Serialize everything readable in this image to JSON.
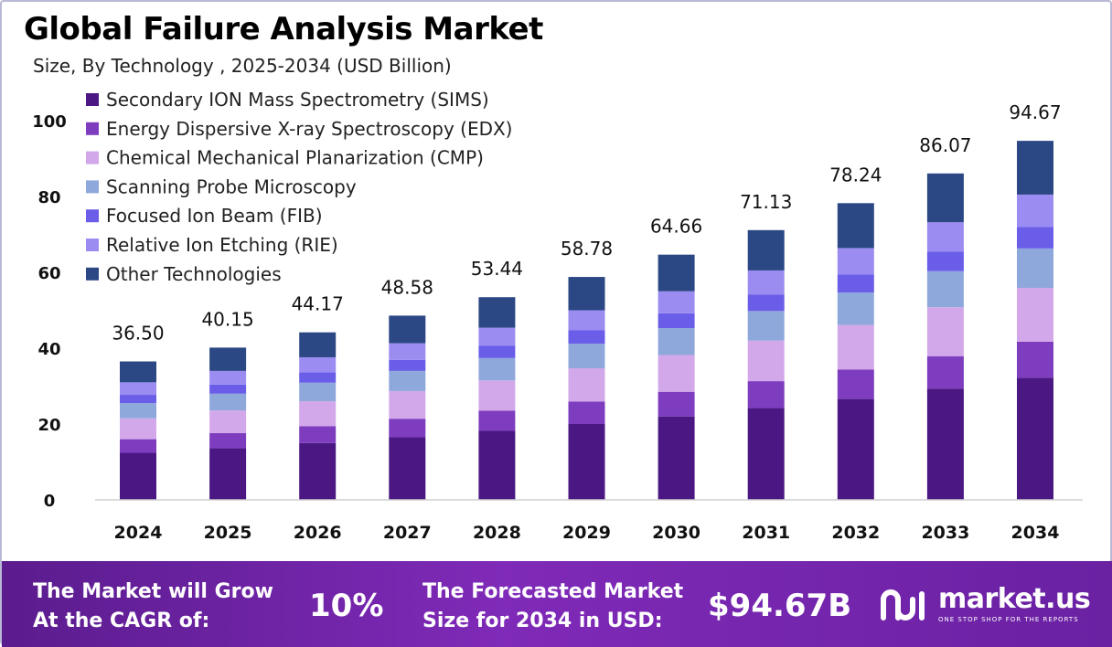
{
  "chart_data": {
    "type": "bar",
    "stacked": true,
    "title": "Global Failure Analysis Market",
    "subtitle": "Size, By Technology , 2025-2034 (USD Billion)",
    "xlabel": "",
    "ylabel": "",
    "ylim": [
      0,
      100
    ],
    "yticks": [
      0,
      20,
      40,
      60,
      80,
      100
    ],
    "grid": false,
    "legend_position": "top-left",
    "categories": [
      "2024",
      "2025",
      "2026",
      "2027",
      "2028",
      "2029",
      "2030",
      "2031",
      "2032",
      "2033",
      "2034"
    ],
    "totals": [
      36.5,
      40.15,
      44.17,
      48.58,
      53.44,
      58.78,
      64.66,
      71.13,
      78.24,
      86.07,
      94.67
    ],
    "total_labels": [
      "36.50",
      "40.15",
      "44.17",
      "48.58",
      "53.44",
      "58.78",
      "64.66",
      "71.13",
      "78.24",
      "86.07",
      "94.67"
    ],
    "series": [
      {
        "name": "Secondary ION Mass Spectrometry (SIMS)",
        "color": "#4b1783",
        "values": [
          12.4,
          13.6,
          15.0,
          16.5,
          18.2,
          20.0,
          22.0,
          24.2,
          26.6,
          29.3,
          32.2
        ]
      },
      {
        "name": "Energy Dispersive X-ray Spectroscopy (EDX)",
        "color": "#7e3dbf",
        "values": [
          3.6,
          4.0,
          4.4,
          4.9,
          5.3,
          5.9,
          6.5,
          7.1,
          7.8,
          8.6,
          9.5
        ]
      },
      {
        "name": "Chemical Mechanical Planarization (CMP)",
        "color": "#d2a8ea",
        "values": [
          5.5,
          6.0,
          6.6,
          7.3,
          8.0,
          8.8,
          9.7,
          10.7,
          11.7,
          12.9,
          14.2
        ]
      },
      {
        "name": " Scanning Probe Microscopy",
        "color": "#8fa8dc",
        "values": [
          4.0,
          4.4,
          4.9,
          5.3,
          5.9,
          6.5,
          7.1,
          7.8,
          8.6,
          9.5,
          10.4
        ]
      },
      {
        "name": "Focused Ion Beam (FIB)",
        "color": "#6a5de8",
        "values": [
          2.2,
          2.4,
          2.7,
          2.9,
          3.2,
          3.5,
          3.9,
          4.3,
          4.7,
          5.2,
          5.7
        ]
      },
      {
        "name": " Relative Ion Etching (RIE)",
        "color": "#9b8cf2",
        "values": [
          3.3,
          3.6,
          4.0,
          4.4,
          4.8,
          5.3,
          5.8,
          6.4,
          7.0,
          7.7,
          8.5
        ]
      },
      {
        "name": "Other Technologies",
        "color": "#2b4784",
        "values": [
          5.5,
          6.15,
          6.57,
          7.28,
          8.04,
          8.78,
          9.66,
          10.63,
          11.84,
          12.87,
          14.17
        ]
      }
    ]
  },
  "footer": {
    "cagr_label_line1": "The Market will Grow",
    "cagr_label_line2": "At the CAGR of:",
    "cagr_value": "10%",
    "size_label_line1": "The Forecasted Market",
    "size_label_line2": "Size for 2034 in USD:",
    "size_value": "$94.67B",
    "brand_name": "market.us",
    "brand_tagline": "ONE STOP SHOP FOR THE REPORTS"
  }
}
